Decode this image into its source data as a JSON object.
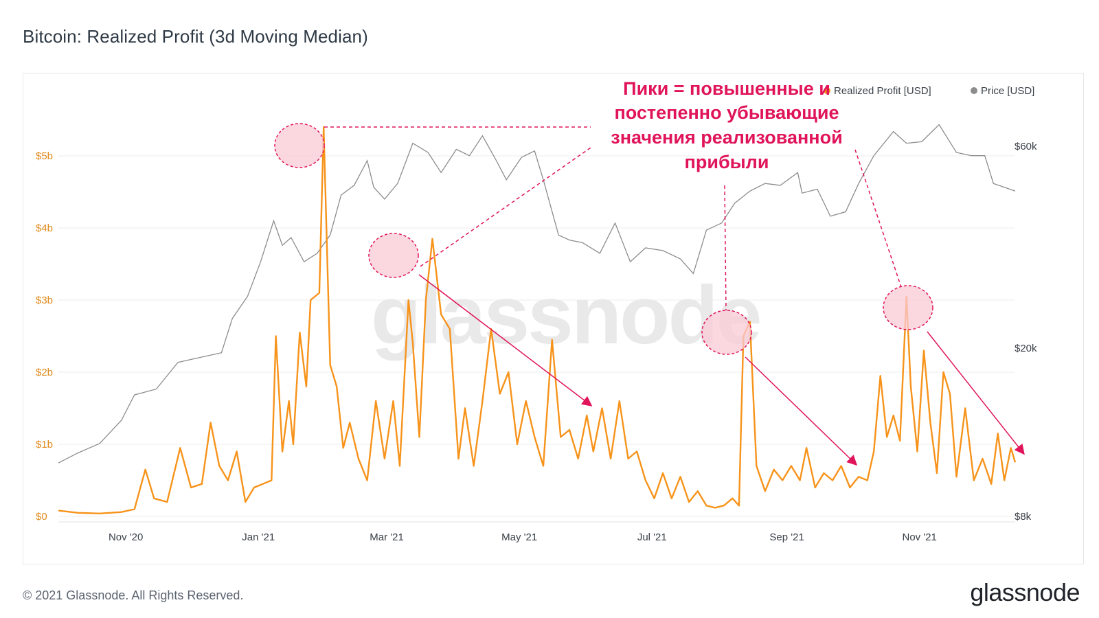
{
  "title": "Bitcoin: Realized Profit (3d Moving Median)",
  "footer": {
    "copyright": "© 2021 Glassnode. All Rights Reserved.",
    "logo": "glassnode"
  },
  "watermark": "glassnode",
  "annotation": {
    "lines": [
      "Пики = повышенные и",
      "постепенно убывающие",
      "значения реализованной",
      "прибыли"
    ],
    "color": "#e0145a"
  },
  "colors": {
    "profit": "#f7931a",
    "price": "#8c8c8c",
    "grid": "#eeeeee",
    "annotation": "#e0145a",
    "circle_fill": "#f9c9d6"
  },
  "chart_data": {
    "type": "line",
    "title": "Bitcoin: Realized Profit (3d Moving Median)",
    "x_range": [
      "2020-10-01",
      "2021-12-15"
    ],
    "x_ticks": [
      "Nov '20",
      "Jan '21",
      "Mar '21",
      "May '21",
      "Jul '21",
      "Sep '21",
      "Nov '21"
    ],
    "y_left": {
      "ticks": [
        "$0",
        "$1b",
        "$2b",
        "$3b",
        "$4b",
        "$5b"
      ],
      "range": [
        0,
        5.1
      ],
      "unit": "USD billions"
    },
    "y_right": {
      "ticks": [
        "$8k",
        "$20k",
        "$60k"
      ],
      "scale": "log",
      "range": [
        8000,
        70000
      ]
    },
    "legend": [
      "Realized Profit [USD]",
      "Price [USD]"
    ],
    "legend_position": "top-right",
    "series": [
      {
        "name": "Realized Profit [USD]",
        "axis": "left",
        "points": [
          [
            "2020-10-01",
            0.08
          ],
          [
            "2020-10-10",
            0.05
          ],
          [
            "2020-10-20",
            0.04
          ],
          [
            "2020-10-30",
            0.06
          ],
          [
            "2020-11-05",
            0.1
          ],
          [
            "2020-11-10",
            0.65
          ],
          [
            "2020-11-14",
            0.25
          ],
          [
            "2020-11-20",
            0.2
          ],
          [
            "2020-11-26",
            0.95
          ],
          [
            "2020-12-01",
            0.4
          ],
          [
            "2020-12-06",
            0.45
          ],
          [
            "2020-12-10",
            1.3
          ],
          [
            "2020-12-14",
            0.7
          ],
          [
            "2020-12-18",
            0.5
          ],
          [
            "2020-12-22",
            0.9
          ],
          [
            "2020-12-26",
            0.2
          ],
          [
            "2020-12-30",
            0.4
          ],
          [
            "2021-01-03",
            0.45
          ],
          [
            "2021-01-07",
            0.5
          ],
          [
            "2021-01-09",
            2.5
          ],
          [
            "2021-01-12",
            0.9
          ],
          [
            "2021-01-15",
            1.6
          ],
          [
            "2021-01-17",
            1.0
          ],
          [
            "2021-01-20",
            2.55
          ],
          [
            "2021-01-23",
            1.8
          ],
          [
            "2021-01-25",
            3.0
          ],
          [
            "2021-01-29",
            3.1
          ],
          [
            "2021-01-31",
            5.4
          ],
          [
            "2021-02-03",
            2.1
          ],
          [
            "2021-02-06",
            1.8
          ],
          [
            "2021-02-09",
            0.95
          ],
          [
            "2021-02-12",
            1.3
          ],
          [
            "2021-02-16",
            0.8
          ],
          [
            "2021-02-20",
            0.5
          ],
          [
            "2021-02-24",
            1.6
          ],
          [
            "2021-02-28",
            0.8
          ],
          [
            "2021-03-04",
            1.6
          ],
          [
            "2021-03-07",
            0.7
          ],
          [
            "2021-03-11",
            3.0
          ],
          [
            "2021-03-13",
            2.4
          ],
          [
            "2021-03-16",
            1.1
          ],
          [
            "2021-03-19",
            3.0
          ],
          [
            "2021-03-22",
            3.85
          ],
          [
            "2021-03-26",
            2.8
          ],
          [
            "2021-03-30",
            2.6
          ],
          [
            "2021-04-03",
            0.8
          ],
          [
            "2021-04-06",
            1.5
          ],
          [
            "2021-04-10",
            0.7
          ],
          [
            "2021-04-14",
            1.6
          ],
          [
            "2021-04-18",
            2.6
          ],
          [
            "2021-04-22",
            1.7
          ],
          [
            "2021-04-26",
            2.0
          ],
          [
            "2021-04-30",
            1.0
          ],
          [
            "2021-05-04",
            1.6
          ],
          [
            "2021-05-08",
            1.1
          ],
          [
            "2021-05-12",
            0.7
          ],
          [
            "2021-05-16",
            2.45
          ],
          [
            "2021-05-20",
            1.1
          ],
          [
            "2021-05-24",
            1.2
          ],
          [
            "2021-05-28",
            0.8
          ],
          [
            "2021-06-01",
            1.4
          ],
          [
            "2021-06-04",
            0.9
          ],
          [
            "2021-06-08",
            1.5
          ],
          [
            "2021-06-12",
            0.8
          ],
          [
            "2021-06-16",
            1.6
          ],
          [
            "2021-06-20",
            0.8
          ],
          [
            "2021-06-24",
            0.9
          ],
          [
            "2021-06-28",
            0.5
          ],
          [
            "2021-07-02",
            0.25
          ],
          [
            "2021-07-06",
            0.6
          ],
          [
            "2021-07-10",
            0.25
          ],
          [
            "2021-07-14",
            0.55
          ],
          [
            "2021-07-18",
            0.2
          ],
          [
            "2021-07-22",
            0.35
          ],
          [
            "2021-07-26",
            0.15
          ],
          [
            "2021-07-30",
            0.12
          ],
          [
            "2021-08-03",
            0.15
          ],
          [
            "2021-08-07",
            0.25
          ],
          [
            "2021-08-10",
            0.15
          ],
          [
            "2021-08-12",
            2.5
          ],
          [
            "2021-08-15",
            2.7
          ],
          [
            "2021-08-18",
            0.7
          ],
          [
            "2021-08-22",
            0.35
          ],
          [
            "2021-08-26",
            0.65
          ],
          [
            "2021-08-30",
            0.5
          ],
          [
            "2021-09-03",
            0.7
          ],
          [
            "2021-09-07",
            0.5
          ],
          [
            "2021-09-10",
            0.95
          ],
          [
            "2021-09-14",
            0.4
          ],
          [
            "2021-09-18",
            0.6
          ],
          [
            "2021-09-22",
            0.5
          ],
          [
            "2021-09-26",
            0.7
          ],
          [
            "2021-09-30",
            0.4
          ],
          [
            "2021-10-04",
            0.55
          ],
          [
            "2021-10-08",
            0.5
          ],
          [
            "2021-10-11",
            0.9
          ],
          [
            "2021-10-14",
            1.95
          ],
          [
            "2021-10-17",
            1.1
          ],
          [
            "2021-10-20",
            1.4
          ],
          [
            "2021-10-23",
            1.05
          ],
          [
            "2021-10-26",
            3.05
          ],
          [
            "2021-10-28",
            1.8
          ],
          [
            "2021-10-31",
            0.9
          ],
          [
            "2021-11-03",
            2.3
          ],
          [
            "2021-11-06",
            1.3
          ],
          [
            "2021-11-09",
            0.6
          ],
          [
            "2021-11-12",
            2.0
          ],
          [
            "2021-11-15",
            1.7
          ],
          [
            "2021-11-18",
            0.55
          ],
          [
            "2021-11-22",
            1.5
          ],
          [
            "2021-11-26",
            0.5
          ],
          [
            "2021-11-30",
            0.8
          ],
          [
            "2021-12-04",
            0.45
          ],
          [
            "2021-12-07",
            1.15
          ],
          [
            "2021-12-10",
            0.5
          ],
          [
            "2021-12-13",
            0.95
          ],
          [
            "2021-12-15",
            0.75
          ]
        ]
      },
      {
        "name": "Price [USD]",
        "axis": "right",
        "points": [
          [
            "2020-10-01",
            10700
          ],
          [
            "2020-10-10",
            11300
          ],
          [
            "2020-10-20",
            11900
          ],
          [
            "2020-10-30",
            13500
          ],
          [
            "2020-11-05",
            15500
          ],
          [
            "2020-11-15",
            16000
          ],
          [
            "2020-11-25",
            18500
          ],
          [
            "2020-12-05",
            19000
          ],
          [
            "2020-12-15",
            19500
          ],
          [
            "2020-12-20",
            23500
          ],
          [
            "2020-12-27",
            26500
          ],
          [
            "2021-01-02",
            32000
          ],
          [
            "2021-01-08",
            40000
          ],
          [
            "2021-01-12",
            35000
          ],
          [
            "2021-01-16",
            36500
          ],
          [
            "2021-01-22",
            32000
          ],
          [
            "2021-01-28",
            33500
          ],
          [
            "2021-02-03",
            37000
          ],
          [
            "2021-02-08",
            46000
          ],
          [
            "2021-02-14",
            48500
          ],
          [
            "2021-02-20",
            55500
          ],
          [
            "2021-02-23",
            48000
          ],
          [
            "2021-02-28",
            45000
          ],
          [
            "2021-03-06",
            49000
          ],
          [
            "2021-03-13",
            61000
          ],
          [
            "2021-03-20",
            58000
          ],
          [
            "2021-03-26",
            52000
          ],
          [
            "2021-04-02",
            59000
          ],
          [
            "2021-04-08",
            57000
          ],
          [
            "2021-04-14",
            63500
          ],
          [
            "2021-04-20",
            56000
          ],
          [
            "2021-04-25",
            50000
          ],
          [
            "2021-05-02",
            56500
          ],
          [
            "2021-05-08",
            58500
          ],
          [
            "2021-05-12",
            50000
          ],
          [
            "2021-05-19",
            37000
          ],
          [
            "2021-05-24",
            36000
          ],
          [
            "2021-05-30",
            35500
          ],
          [
            "2021-06-07",
            33500
          ],
          [
            "2021-06-14",
            39500
          ],
          [
            "2021-06-21",
            32000
          ],
          [
            "2021-06-28",
            34500
          ],
          [
            "2021-07-06",
            34000
          ],
          [
            "2021-07-14",
            32500
          ],
          [
            "2021-07-20",
            30000
          ],
          [
            "2021-07-26",
            38000
          ],
          [
            "2021-08-02",
            39500
          ],
          [
            "2021-08-08",
            44000
          ],
          [
            "2021-08-15",
            47000
          ],
          [
            "2021-08-22",
            49000
          ],
          [
            "2021-08-29",
            48500
          ],
          [
            "2021-09-06",
            52000
          ],
          [
            "2021-09-08",
            46500
          ],
          [
            "2021-09-15",
            47500
          ],
          [
            "2021-09-21",
            41000
          ],
          [
            "2021-09-28",
            42000
          ],
          [
            "2021-10-04",
            49000
          ],
          [
            "2021-10-11",
            57000
          ],
          [
            "2021-10-20",
            65000
          ],
          [
            "2021-10-26",
            61000
          ],
          [
            "2021-11-02",
            61500
          ],
          [
            "2021-11-10",
            67500
          ],
          [
            "2021-11-18",
            58000
          ],
          [
            "2021-11-25",
            57000
          ],
          [
            "2021-12-01",
            57000
          ],
          [
            "2021-12-05",
            49000
          ],
          [
            "2021-12-10",
            48000
          ],
          [
            "2021-12-15",
            47000
          ]
        ]
      }
    ]
  }
}
